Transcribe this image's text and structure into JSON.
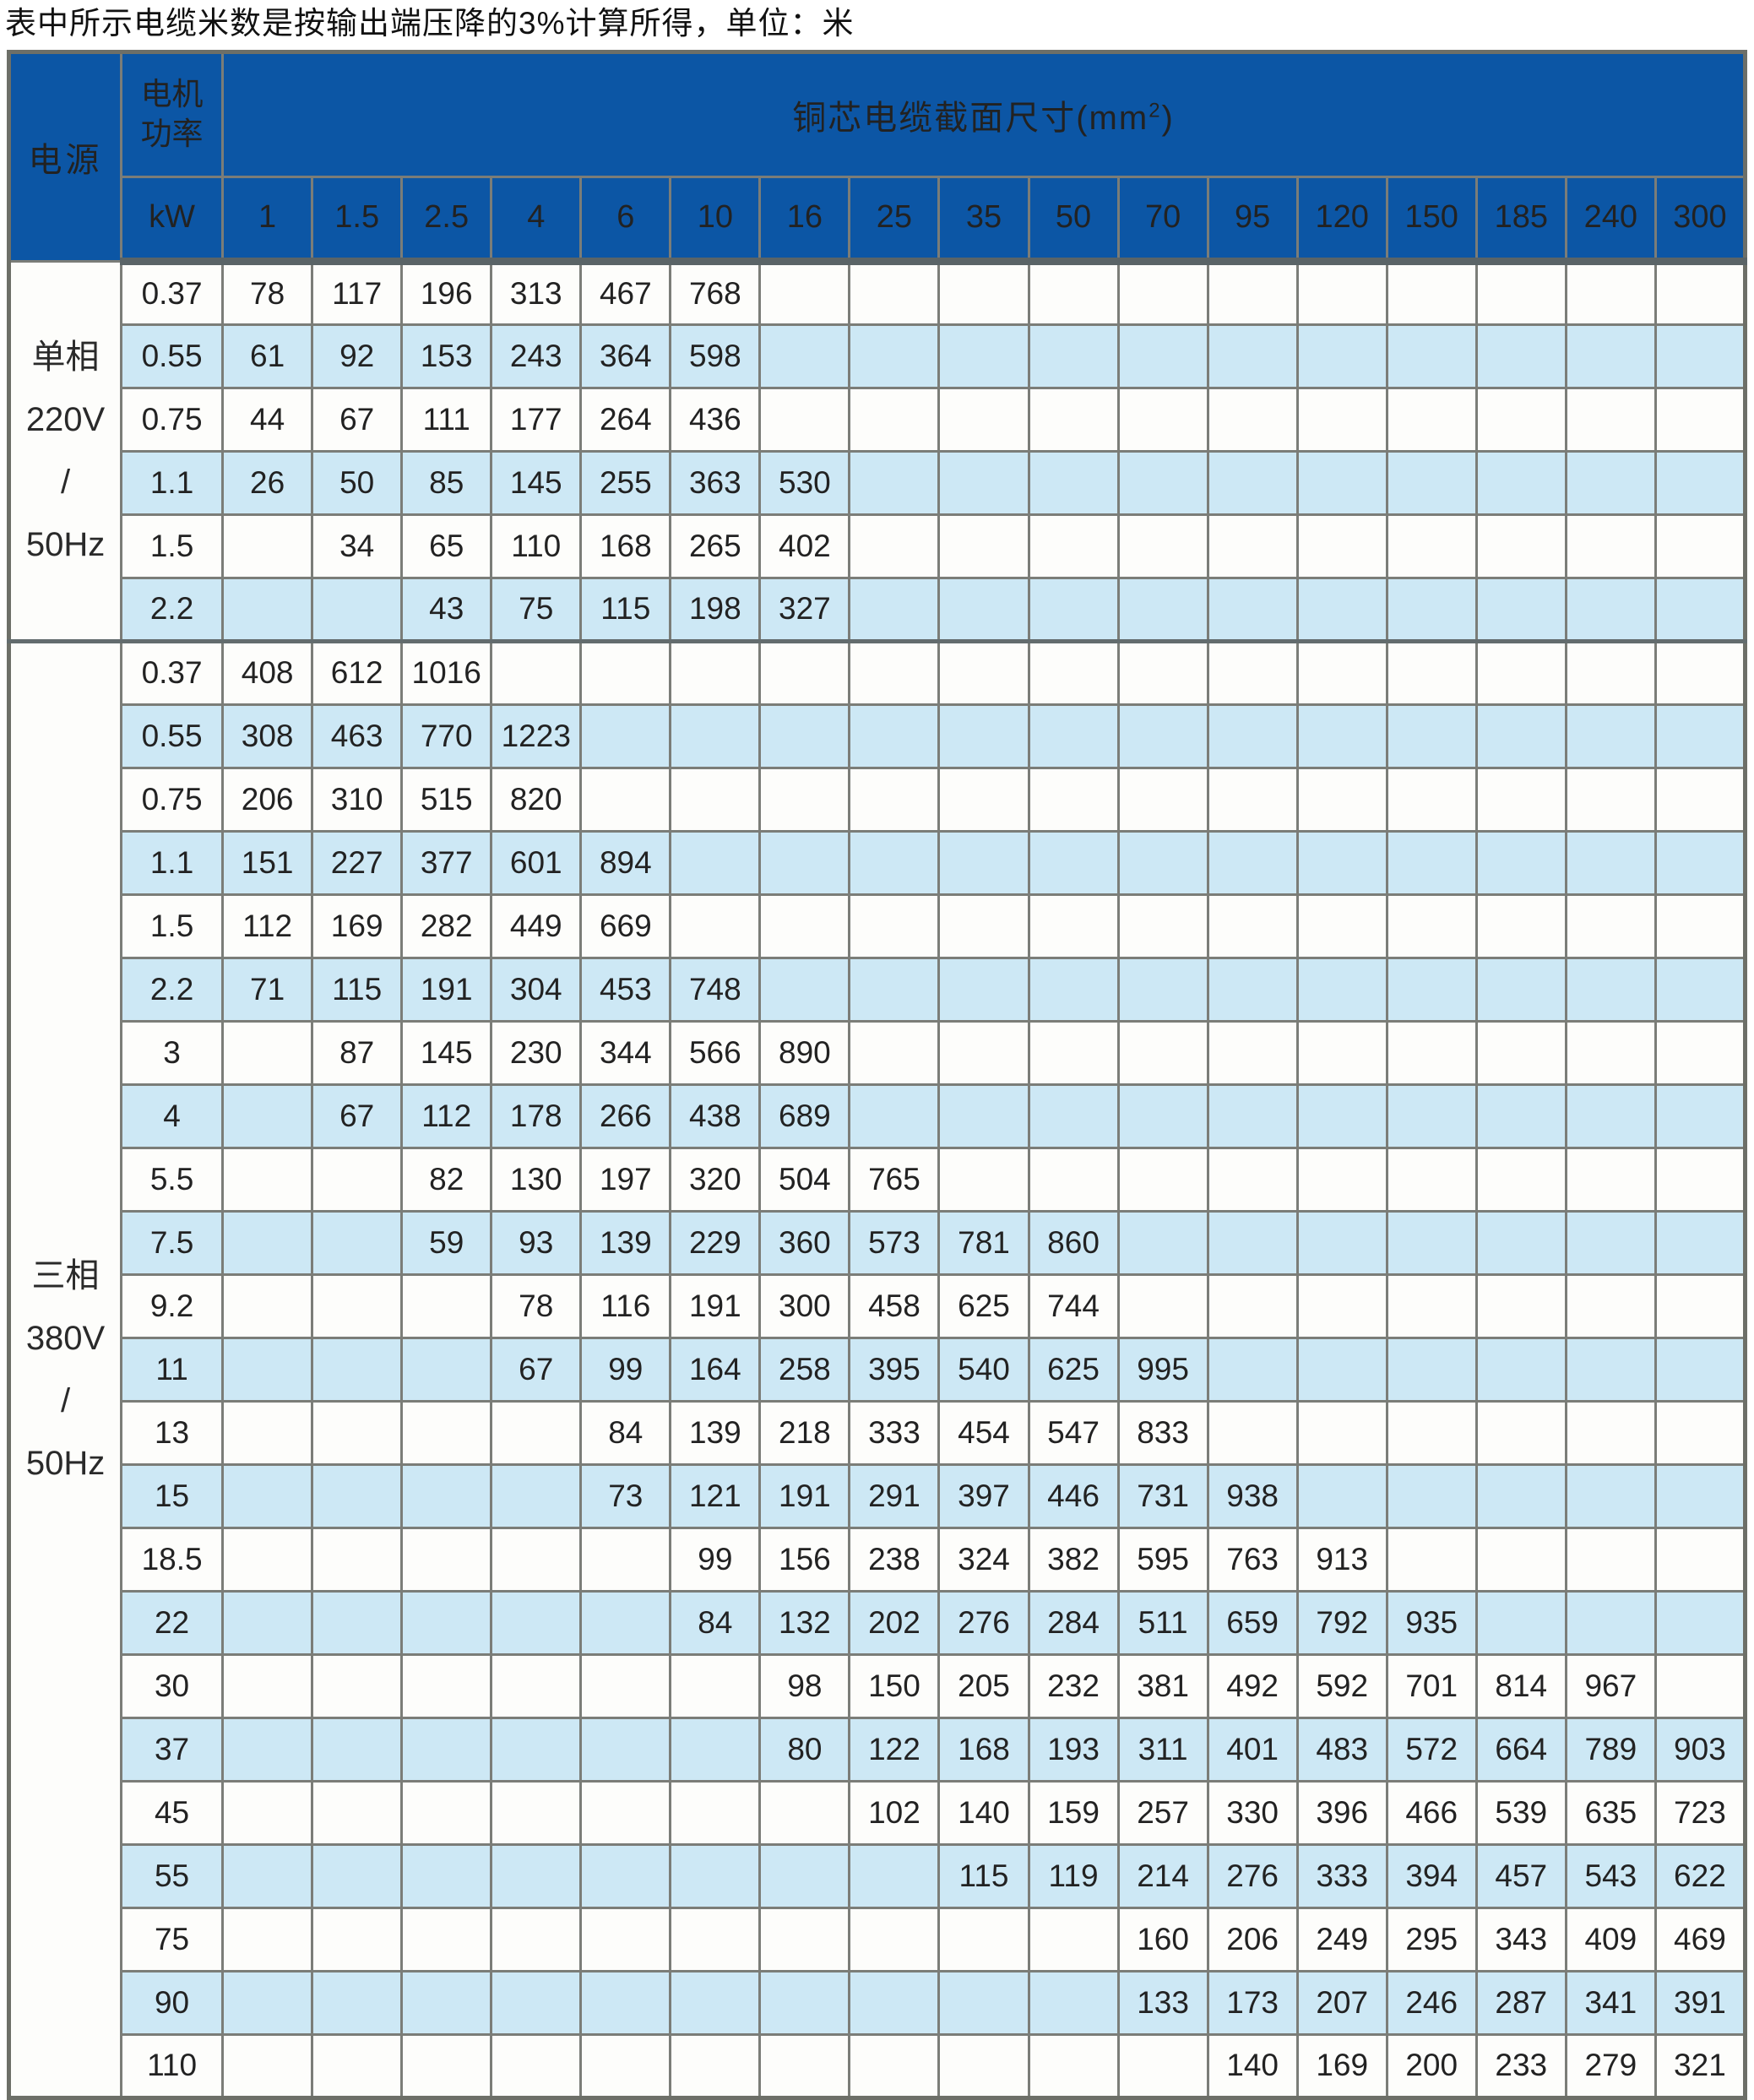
{
  "title": "表中所示电缆米数是按输出端压降的3%计算所得，单位：米",
  "colors": {
    "header_blue": "#0c56a5",
    "stripe_blue": "#cde8f5",
    "row_white": "#fdfdfb",
    "grid_gray": "#7b7d78"
  },
  "table": {
    "corner_header": "电源",
    "motor_power_line1": "电机",
    "motor_power_line2": "功率",
    "section_header_prefix": "铜芯电缆截面尺寸(mm",
    "section_header_sup": "2",
    "section_header_suffix": ")",
    "unit_header": "kW",
    "columns": [
      "1",
      "1.5",
      "2.5",
      "4",
      "6",
      "10",
      "16",
      "25",
      "35",
      "50",
      "70",
      "95",
      "120",
      "150",
      "185",
      "240",
      "300"
    ],
    "groups": [
      {
        "label_lines": [
          "单相",
          "220V",
          "/",
          "50Hz"
        ],
        "rows": [
          {
            "kw": "0.37",
            "values": [
              "78",
              "117",
              "196",
              "313",
              "467",
              "768",
              "",
              "",
              "",
              "",
              "",
              "",
              "",
              "",
              "",
              "",
              ""
            ]
          },
          {
            "kw": "0.55",
            "values": [
              "61",
              "92",
              "153",
              "243",
              "364",
              "598",
              "",
              "",
              "",
              "",
              "",
              "",
              "",
              "",
              "",
              "",
              ""
            ]
          },
          {
            "kw": "0.75",
            "values": [
              "44",
              "67",
              "111",
              "177",
              "264",
              "436",
              "",
              "",
              "",
              "",
              "",
              "",
              "",
              "",
              "",
              "",
              ""
            ]
          },
          {
            "kw": "1.1",
            "values": [
              "26",
              "50",
              "85",
              "145",
              "255",
              "363",
              "530",
              "",
              "",
              "",
              "",
              "",
              "",
              "",
              "",
              "",
              ""
            ]
          },
          {
            "kw": "1.5",
            "values": [
              "",
              "34",
              "65",
              "110",
              "168",
              "265",
              "402",
              "",
              "",
              "",
              "",
              "",
              "",
              "",
              "",
              "",
              ""
            ]
          },
          {
            "kw": "2.2",
            "values": [
              "",
              "",
              "43",
              "75",
              "115",
              "198",
              "327",
              "",
              "",
              "",
              "",
              "",
              "",
              "",
              "",
              "",
              ""
            ]
          }
        ]
      },
      {
        "label_lines": [
          "三相",
          "380V",
          "/",
          "50Hz"
        ],
        "rows": [
          {
            "kw": "0.37",
            "values": [
              "408",
              "612",
              "1016",
              "",
              "",
              "",
              "",
              "",
              "",
              "",
              "",
              "",
              "",
              "",
              "",
              "",
              ""
            ]
          },
          {
            "kw": "0.55",
            "values": [
              "308",
              "463",
              "770",
              "1223",
              "",
              "",
              "",
              "",
              "",
              "",
              "",
              "",
              "",
              "",
              "",
              "",
              ""
            ]
          },
          {
            "kw": "0.75",
            "values": [
              "206",
              "310",
              "515",
              "820",
              "",
              "",
              "",
              "",
              "",
              "",
              "",
              "",
              "",
              "",
              "",
              "",
              ""
            ]
          },
          {
            "kw": "1.1",
            "values": [
              "151",
              "227",
              "377",
              "601",
              "894",
              "",
              "",
              "",
              "",
              "",
              "",
              "",
              "",
              "",
              "",
              "",
              ""
            ]
          },
          {
            "kw": "1.5",
            "values": [
              "112",
              "169",
              "282",
              "449",
              "669",
              "",
              "",
              "",
              "",
              "",
              "",
              "",
              "",
              "",
              "",
              "",
              ""
            ]
          },
          {
            "kw": "2.2",
            "values": [
              "71",
              "115",
              "191",
              "304",
              "453",
              "748",
              "",
              "",
              "",
              "",
              "",
              "",
              "",
              "",
              "",
              "",
              ""
            ]
          },
          {
            "kw": "3",
            "values": [
              "",
              "87",
              "145",
              "230",
              "344",
              "566",
              "890",
              "",
              "",
              "",
              "",
              "",
              "",
              "",
              "",
              "",
              ""
            ]
          },
          {
            "kw": "4",
            "values": [
              "",
              "67",
              "112",
              "178",
              "266",
              "438",
              "689",
              "",
              "",
              "",
              "",
              "",
              "",
              "",
              "",
              "",
              ""
            ]
          },
          {
            "kw": "5.5",
            "values": [
              "",
              "",
              "82",
              "130",
              "197",
              "320",
              "504",
              "765",
              "",
              "",
              "",
              "",
              "",
              "",
              "",
              "",
              ""
            ]
          },
          {
            "kw": "7.5",
            "values": [
              "",
              "",
              "59",
              "93",
              "139",
              "229",
              "360",
              "573",
              "781",
              "860",
              "",
              "",
              "",
              "",
              "",
              "",
              ""
            ]
          },
          {
            "kw": "9.2",
            "values": [
              "",
              "",
              "",
              "78",
              "116",
              "191",
              "300",
              "458",
              "625",
              "744",
              "",
              "",
              "",
              "",
              "",
              "",
              ""
            ]
          },
          {
            "kw": "11",
            "values": [
              "",
              "",
              "",
              "67",
              "99",
              "164",
              "258",
              "395",
              "540",
              "625",
              "995",
              "",
              "",
              "",
              "",
              "",
              ""
            ]
          },
          {
            "kw": "13",
            "values": [
              "",
              "",
              "",
              "",
              "84",
              "139",
              "218",
              "333",
              "454",
              "547",
              "833",
              "",
              "",
              "",
              "",
              "",
              ""
            ]
          },
          {
            "kw": "15",
            "values": [
              "",
              "",
              "",
              "",
              "73",
              "121",
              "191",
              "291",
              "397",
              "446",
              "731",
              "938",
              "",
              "",
              "",
              "",
              ""
            ]
          },
          {
            "kw": "18.5",
            "values": [
              "",
              "",
              "",
              "",
              "",
              "99",
              "156",
              "238",
              "324",
              "382",
              "595",
              "763",
              "913",
              "",
              "",
              "",
              ""
            ]
          },
          {
            "kw": "22",
            "values": [
              "",
              "",
              "",
              "",
              "",
              "84",
              "132",
              "202",
              "276",
              "284",
              "511",
              "659",
              "792",
              "935",
              "",
              "",
              ""
            ]
          },
          {
            "kw": "30",
            "values": [
              "",
              "",
              "",
              "",
              "",
              "",
              "98",
              "150",
              "205",
              "232",
              "381",
              "492",
              "592",
              "701",
              "814",
              "967",
              ""
            ]
          },
          {
            "kw": "37",
            "values": [
              "",
              "",
              "",
              "",
              "",
              "",
              "80",
              "122",
              "168",
              "193",
              "311",
              "401",
              "483",
              "572",
              "664",
              "789",
              "903"
            ]
          },
          {
            "kw": "45",
            "values": [
              "",
              "",
              "",
              "",
              "",
              "",
              "",
              "102",
              "140",
              "159",
              "257",
              "330",
              "396",
              "466",
              "539",
              "635",
              "723"
            ]
          },
          {
            "kw": "55",
            "values": [
              "",
              "",
              "",
              "",
              "",
              "",
              "",
              "",
              "115",
              "119",
              "214",
              "276",
              "333",
              "394",
              "457",
              "543",
              "622"
            ]
          },
          {
            "kw": "75",
            "values": [
              "",
              "",
              "",
              "",
              "",
              "",
              "",
              "",
              "",
              "",
              "160",
              "206",
              "249",
              "295",
              "343",
              "409",
              "469"
            ]
          },
          {
            "kw": "90",
            "values": [
              "",
              "",
              "",
              "",
              "",
              "",
              "",
              "",
              "",
              "",
              "133",
              "173",
              "207",
              "246",
              "287",
              "341",
              "391"
            ]
          },
          {
            "kw": "110",
            "values": [
              "",
              "",
              "",
              "",
              "",
              "",
              "",
              "",
              "",
              "",
              "",
              "140",
              "169",
              "200",
              "233",
              "279",
              "321"
            ]
          }
        ]
      }
    ]
  }
}
